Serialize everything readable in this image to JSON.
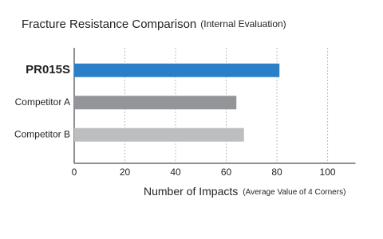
{
  "chart_data": {
    "type": "barh",
    "title": "Fracture Resistance Comparison",
    "subtitle": "(Internal Evaluation)",
    "xlabel": "Number of Impacts",
    "xlabel_note": "(Average Value of 4 Corners)",
    "categories": [
      "PR015S",
      "Competitor A",
      "Competitor B"
    ],
    "values": [
      81,
      64,
      67
    ],
    "colors": [
      "#2b7fc8",
      "#939598",
      "#bcbec0"
    ],
    "highlight_index": 0,
    "xlim": [
      0,
      111
    ],
    "xticks": [
      0,
      20,
      40,
      60,
      80,
      100
    ],
    "grid": true
  }
}
